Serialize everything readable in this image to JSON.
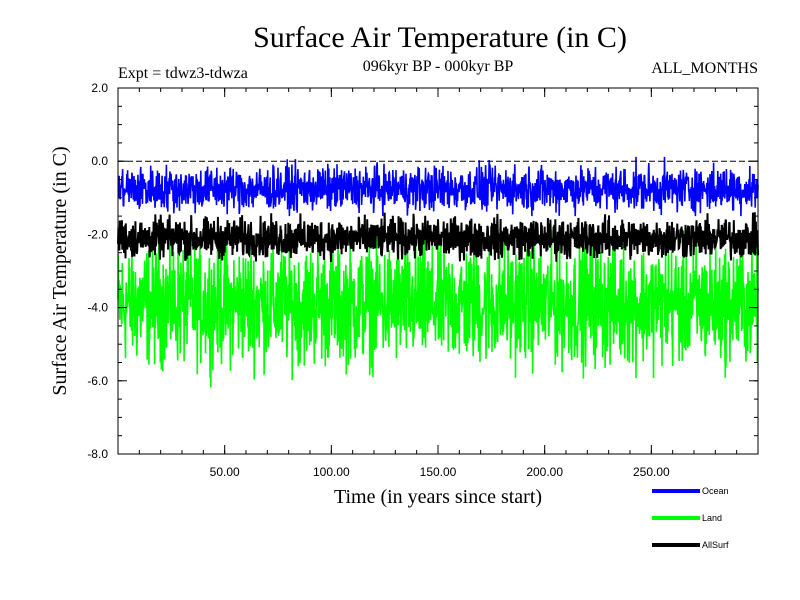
{
  "chart_data": {
    "type": "line",
    "title": "Surface Air Temperature (in C)",
    "subtitle_left": "Expt = tdwz3-tdwza",
    "subtitle_center": "096kyr BP - 000kyr BP",
    "subtitle_right": "ALL_MONTHS",
    "xlabel": "Time (in years since start)",
    "ylabel": "Surface Air Temperature (in C)",
    "xlim": [
      0,
      300
    ],
    "ylim": [
      -8.0,
      2.0
    ],
    "xticks": [
      50,
      100,
      150,
      200,
      250
    ],
    "xtick_labels": [
      "50.00",
      "100.00",
      "150.00",
      "200.00",
      "250.00"
    ],
    "yticks": [
      2.0,
      0.0,
      -2.0,
      -4.0,
      -6.0,
      -8.0
    ],
    "ytick_labels": [
      "2.0",
      "0.0",
      "-2.0",
      "-4.0",
      "-6.0",
      "-8.0"
    ],
    "reference_line_y": 0.0,
    "grid": false,
    "legend_position": "bottom-right",
    "series": [
      {
        "name": "Land",
        "color": "#00ff00",
        "mean": -3.9,
        "min": -6.5,
        "max": -1.7
      },
      {
        "name": "AllSurf",
        "color": "#000000",
        "mean": -2.1,
        "min": -2.9,
        "max": -1.3
      },
      {
        "name": "Ocean",
        "color": "#0000ff",
        "mean": -0.75,
        "min": -1.5,
        "max": 0.3
      }
    ],
    "legend_order": [
      "Ocean",
      "Land",
      "AllSurf"
    ]
  }
}
